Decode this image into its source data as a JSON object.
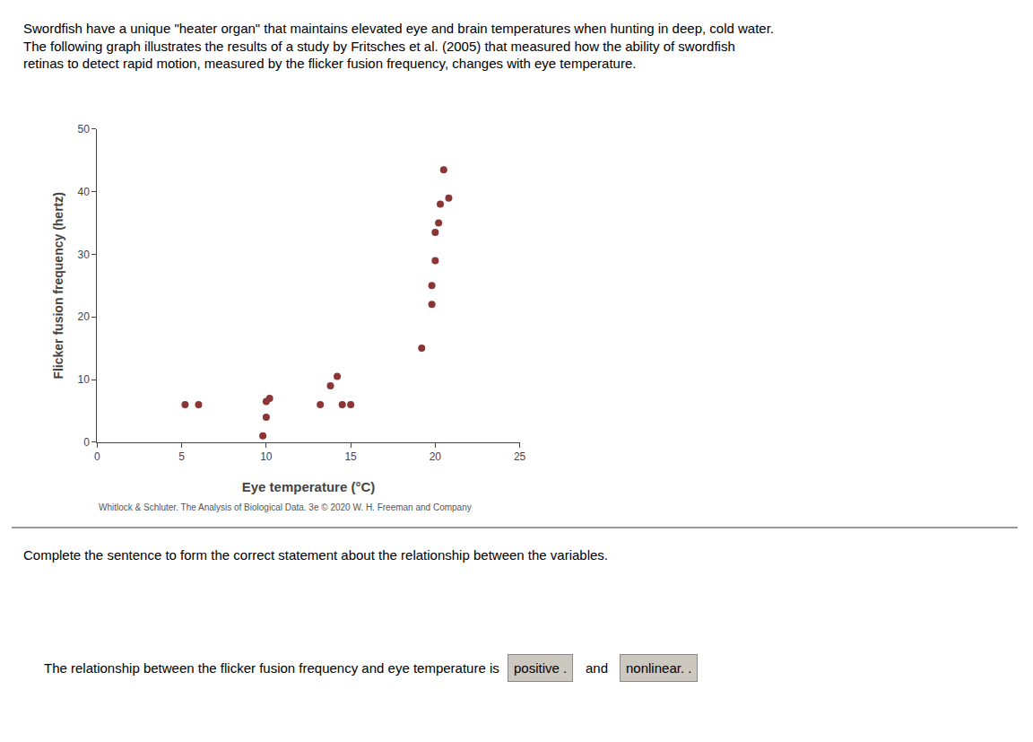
{
  "chart_data": {
    "type": "scatter",
    "title": "Swordfish have a unique \"heater organ\" that maintains elevated eye and brain temperatures when hunting in deep, cold water.\nThe following graph illustrates the results of a study by Fritsches et al. (2005) that measured how the ability of swordfish\nretinas to detect rapid motion, measured by the flicker fusion frequency, changes with eye temperature.",
    "xlabel": "Eye temperature (°C)",
    "ylabel": "Flicker fusion frequency (hertz)",
    "x": [
      5.2,
      6.0,
      9.8,
      10.0,
      10.0,
      10.2,
      13.2,
      13.8,
      14.2,
      14.5,
      15.0,
      19.2,
      19.8,
      19.8,
      20.0,
      20.0,
      20.2,
      20.3,
      20.5,
      20.8
    ],
    "values": [
      6.0,
      6.0,
      1.0,
      4.0,
      6.5,
      7.0,
      6.0,
      9.0,
      10.5,
      6.0,
      6.0,
      15.0,
      22.0,
      25.0,
      29.0,
      33.5,
      35.0,
      38.0,
      43.5,
      39.0
    ],
    "color": "#8B3535",
    "xlim": [
      0,
      25
    ],
    "ylim": [
      0,
      50
    ],
    "xticks": [
      0,
      5,
      10,
      15,
      20,
      25
    ],
    "yticks": [
      0,
      10,
      20,
      30,
      40,
      50
    ],
    "grid": false,
    "annotations": [
      "Whitlock & Schluter. The Analysis of Biological Data. 3e © 2020 W. H. Freeman and Company",
      "Complete the sentence to form the correct statement about the relationship between the variables.",
      "The relationship between the flicker fusion frequency and eye temperature is",
      "positive .",
      "and",
      "nonlinear. ."
    ]
  }
}
